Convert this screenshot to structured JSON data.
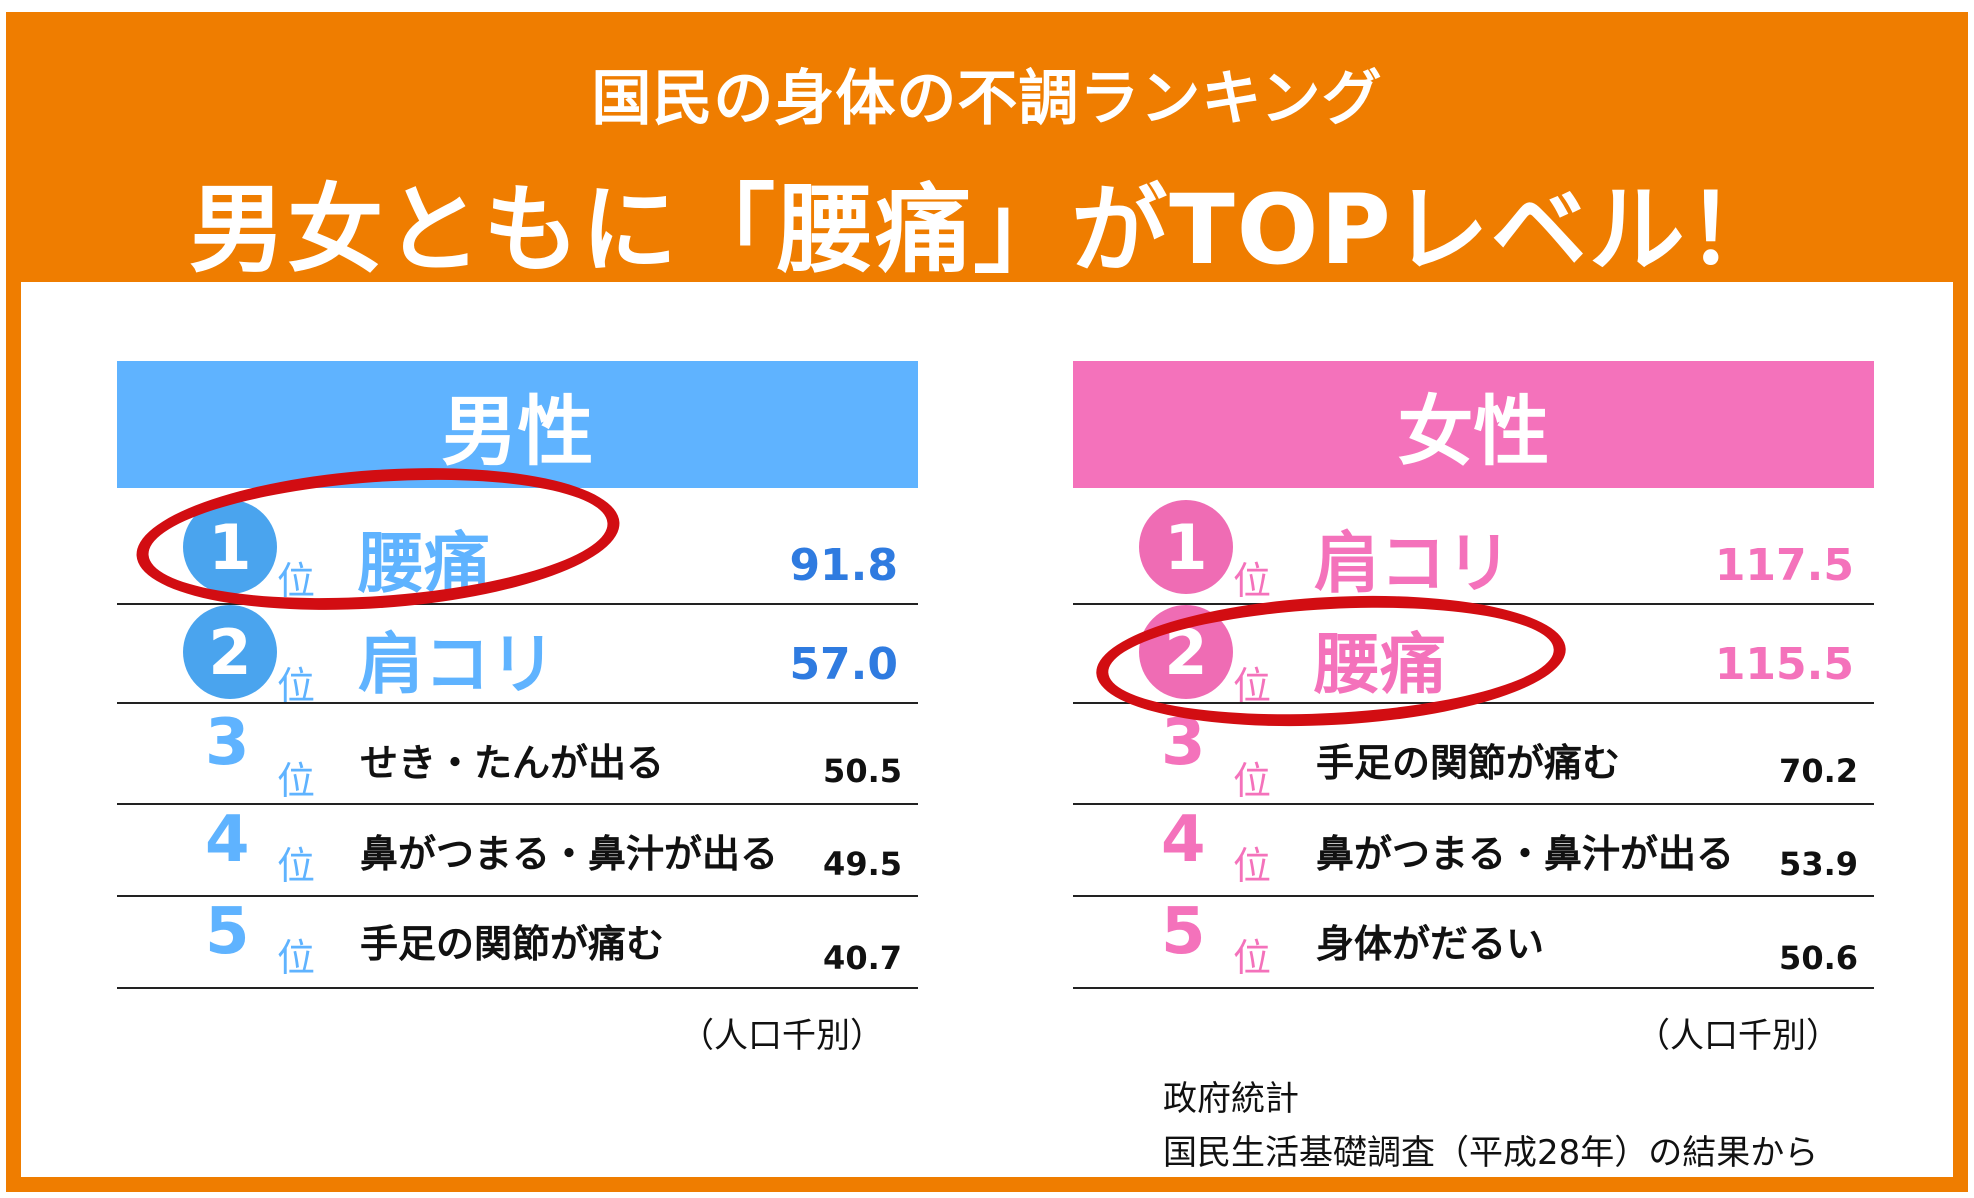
{
  "banner": {
    "subtitle": "国民の身体の不調ランキング",
    "title": "男女ともに「腰痛」がTOPレベル！",
    "color": "#ef7d00"
  },
  "colors": {
    "male_header": "#5fb3ff",
    "female_header": "#f472bb",
    "highlight": "#d20d12"
  },
  "rank_unit": "位",
  "chart_data": [
    {
      "type": "table",
      "title": "男性",
      "unit_note": "（人口千別）",
      "rows": [
        {
          "rank": "1",
          "item": "腰痛",
          "value": "91.8",
          "highlighted": true
        },
        {
          "rank": "2",
          "item": "肩コリ",
          "value": "57.0",
          "highlighted": false
        },
        {
          "rank": "3",
          "item": "せき・たんが出る",
          "value": "50.5",
          "highlighted": false
        },
        {
          "rank": "4",
          "item": "鼻がつまる・鼻汁が出る",
          "value": "49.5",
          "highlighted": false
        },
        {
          "rank": "5",
          "item": "手足の関節が痛む",
          "value": "40.7",
          "highlighted": false
        }
      ]
    },
    {
      "type": "table",
      "title": "女性",
      "unit_note": "（人口千別）",
      "rows": [
        {
          "rank": "1",
          "item": "肩コリ",
          "value": "117.5",
          "highlighted": false
        },
        {
          "rank": "2",
          "item": "腰痛",
          "value": "115.5",
          "highlighted": true
        },
        {
          "rank": "3",
          "item": "手足の関節が痛む",
          "value": "70.2",
          "highlighted": false
        },
        {
          "rank": "4",
          "item": "鼻がつまる・鼻汁が出る",
          "value": "53.9",
          "highlighted": false
        },
        {
          "rank": "5",
          "item": "身体がだるい",
          "value": "50.6",
          "highlighted": false
        }
      ]
    }
  ],
  "source": {
    "line1": "政府統計",
    "line2": "国民生活基礎調査（平成28年）の結果から"
  }
}
